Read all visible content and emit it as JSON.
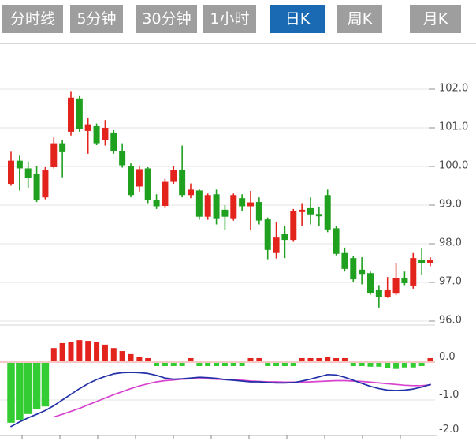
{
  "tabs": [
    {
      "id": "time-line",
      "label": "分时线",
      "active": false
    },
    {
      "id": "5min",
      "label": "5分钟",
      "active": false
    },
    {
      "id": "30min",
      "label": "30分钟",
      "active": false
    },
    {
      "id": "1hour",
      "label": "1小时",
      "active": false
    },
    {
      "id": "daily-k",
      "label": "日K",
      "active": true
    },
    {
      "id": "weekly-k",
      "label": "周K",
      "active": false
    },
    {
      "id": "monthly-k",
      "label": "月K",
      "active": false
    }
  ],
  "colors": {
    "tab_bg": "#9e9e9e",
    "tab_active_bg": "#1a6ab3",
    "tab_text": "#ffffff",
    "up": "#e3241d",
    "down": "#1fa01f",
    "hist_up": "#e3241d",
    "hist_down": "#33cc33",
    "dif_line": "#2230a8",
    "dea_line": "#d843cf",
    "zero_line": "#f2a8a4",
    "grid": "#e4e4e4",
    "tick": "#b0b0b0",
    "axis_text": "#4a4a4a",
    "axis_line": "#c0c0c0",
    "pane_divider": "#d4d4d4",
    "separator": "#d8d8d8"
  },
  "chart_data": {
    "type": "candlestick",
    "title": "",
    "legend_position": "none",
    "grid": true,
    "price_axis_labels": [
      "102.0",
      "101.0",
      "100.0",
      "99.0",
      "98.0",
      "97.0",
      "96.0"
    ],
    "price_axis_values": [
      102,
      101,
      100,
      99,
      98,
      97,
      96
    ],
    "price_range": [
      95.9,
      103.0
    ],
    "candles_ohlc": [
      [
        99.55,
        100.38,
        99.5,
        100.15
      ],
      [
        100.15,
        100.28,
        99.38,
        99.95
      ],
      [
        99.95,
        100.13,
        99.45,
        99.7
      ],
      [
        99.8,
        100.0,
        99.08,
        99.13
      ],
      [
        99.2,
        99.98,
        99.15,
        99.9
      ],
      [
        99.98,
        100.75,
        99.95,
        100.6
      ],
      [
        100.6,
        100.68,
        99.72,
        100.37
      ],
      [
        100.9,
        101.95,
        100.8,
        101.78
      ],
      [
        101.76,
        101.82,
        100.9,
        100.98
      ],
      [
        100.92,
        101.25,
        100.33,
        101.09
      ],
      [
        101.04,
        101.11,
        100.55,
        100.6
      ],
      [
        100.68,
        101.2,
        100.54,
        101.0
      ],
      [
        100.88,
        100.94,
        100.33,
        100.4
      ],
      [
        100.4,
        100.6,
        99.97,
        100.03
      ],
      [
        100.0,
        100.08,
        99.2,
        99.26
      ],
      [
        99.48,
        100.0,
        99.35,
        99.93
      ],
      [
        99.95,
        99.98,
        99.05,
        99.13
      ],
      [
        99.13,
        99.28,
        98.9,
        98.97
      ],
      [
        98.98,
        99.68,
        98.92,
        99.6
      ],
      [
        99.6,
        100.0,
        99.55,
        99.9
      ],
      [
        99.9,
        100.54,
        99.2,
        99.26
      ],
      [
        99.26,
        99.56,
        99.18,
        99.4
      ],
      [
        99.38,
        99.42,
        98.62,
        98.7
      ],
      [
        98.7,
        99.3,
        98.62,
        99.26
      ],
      [
        99.28,
        99.4,
        98.5,
        98.66
      ],
      [
        98.88,
        99.0,
        98.35,
        98.7
      ],
      [
        98.66,
        99.3,
        98.6,
        99.26
      ],
      [
        99.18,
        99.28,
        98.85,
        98.97
      ],
      [
        98.97,
        99.37,
        98.35,
        99.07
      ],
      [
        99.08,
        99.2,
        98.5,
        98.6
      ],
      [
        98.63,
        98.68,
        97.6,
        97.84
      ],
      [
        97.76,
        98.55,
        97.62,
        98.16
      ],
      [
        98.26,
        98.45,
        97.63,
        98.1
      ],
      [
        98.1,
        98.9,
        98.05,
        98.85
      ],
      [
        98.82,
        99.05,
        98.47,
        98.88
      ],
      [
        98.92,
        99.2,
        98.5,
        98.76
      ],
      [
        98.77,
        98.95,
        98.47,
        98.71
      ],
      [
        99.26,
        99.4,
        98.3,
        98.37
      ],
      [
        98.4,
        98.45,
        97.7,
        97.74
      ],
      [
        97.76,
        97.9,
        97.28,
        97.35
      ],
      [
        97.63,
        97.68,
        97.0,
        97.08
      ],
      [
        97.33,
        97.65,
        96.95,
        97.22
      ],
      [
        97.24,
        97.28,
        96.68,
        96.73
      ],
      [
        96.81,
        96.93,
        96.35,
        96.63
      ],
      [
        96.63,
        97.14,
        96.6,
        96.81
      ],
      [
        96.71,
        97.5,
        96.67,
        97.12
      ],
      [
        97.12,
        97.28,
        96.93,
        96.98
      ],
      [
        96.92,
        97.76,
        96.84,
        97.63
      ],
      [
        97.59,
        97.9,
        97.2,
        97.49
      ],
      [
        97.49,
        97.65,
        97.42,
        97.59
      ]
    ],
    "indicator": {
      "type": "macd",
      "axis_labels": [
        "0.0",
        "-1.0",
        "-2.0"
      ],
      "axis_values": [
        0,
        -1,
        -2
      ],
      "range": [
        -2.1,
        0.7
      ],
      "histogram": [
        -1.58,
        -1.5,
        -1.35,
        -1.22,
        -1.15,
        0.35,
        0.48,
        0.52,
        0.56,
        0.54,
        0.5,
        0.44,
        0.35,
        0.27,
        0.19,
        0.12,
        0.08,
        -0.02,
        -0.03,
        -0.03,
        -0.04,
        0.02,
        -0.03,
        -0.04,
        -0.04,
        -0.04,
        -0.04,
        -0.05,
        0.02,
        0.02,
        -0.05,
        -0.06,
        -0.05,
        -0.05,
        0.02,
        0.05,
        0.07,
        0.12,
        0.06,
        0.03,
        -0.03,
        -0.07,
        -0.1,
        -0.1,
        -0.14,
        -0.16,
        -0.12,
        -0.12,
        -0.05,
        0.04
      ],
      "dif": [
        -1.7,
        -1.58,
        -1.47,
        -1.38,
        -1.28,
        -1.15,
        -1.0,
        -0.85,
        -0.7,
        -0.57,
        -0.46,
        -0.38,
        -0.31,
        -0.28,
        -0.27,
        -0.28,
        -0.3,
        -0.35,
        -0.42,
        -0.45,
        -0.44,
        -0.42,
        -0.4,
        -0.41,
        -0.43,
        -0.46,
        -0.48,
        -0.5,
        -0.52,
        -0.52,
        -0.54,
        -0.55,
        -0.55,
        -0.54,
        -0.5,
        -0.45,
        -0.39,
        -0.33,
        -0.34,
        -0.4,
        -0.48,
        -0.56,
        -0.64,
        -0.7,
        -0.74,
        -0.75,
        -0.74,
        -0.71,
        -0.66,
        -0.59
      ],
      "dea": [
        null,
        null,
        null,
        null,
        null,
        -1.45,
        -1.38,
        -1.3,
        -1.22,
        -1.13,
        -1.04,
        -0.95,
        -0.86,
        -0.78,
        -0.7,
        -0.63,
        -0.57,
        -0.52,
        -0.49,
        -0.47,
        -0.45,
        -0.44,
        -0.44,
        -0.44,
        -0.45,
        -0.46,
        -0.47,
        -0.48,
        -0.5,
        -0.51,
        -0.52,
        -0.52,
        -0.53,
        -0.53,
        -0.53,
        -0.52,
        -0.51,
        -0.5,
        -0.49,
        -0.49,
        -0.5,
        -0.51,
        -0.53,
        -0.55,
        -0.57,
        -0.59,
        -0.61,
        -0.62,
        -0.62,
        -0.6
      ]
    }
  }
}
